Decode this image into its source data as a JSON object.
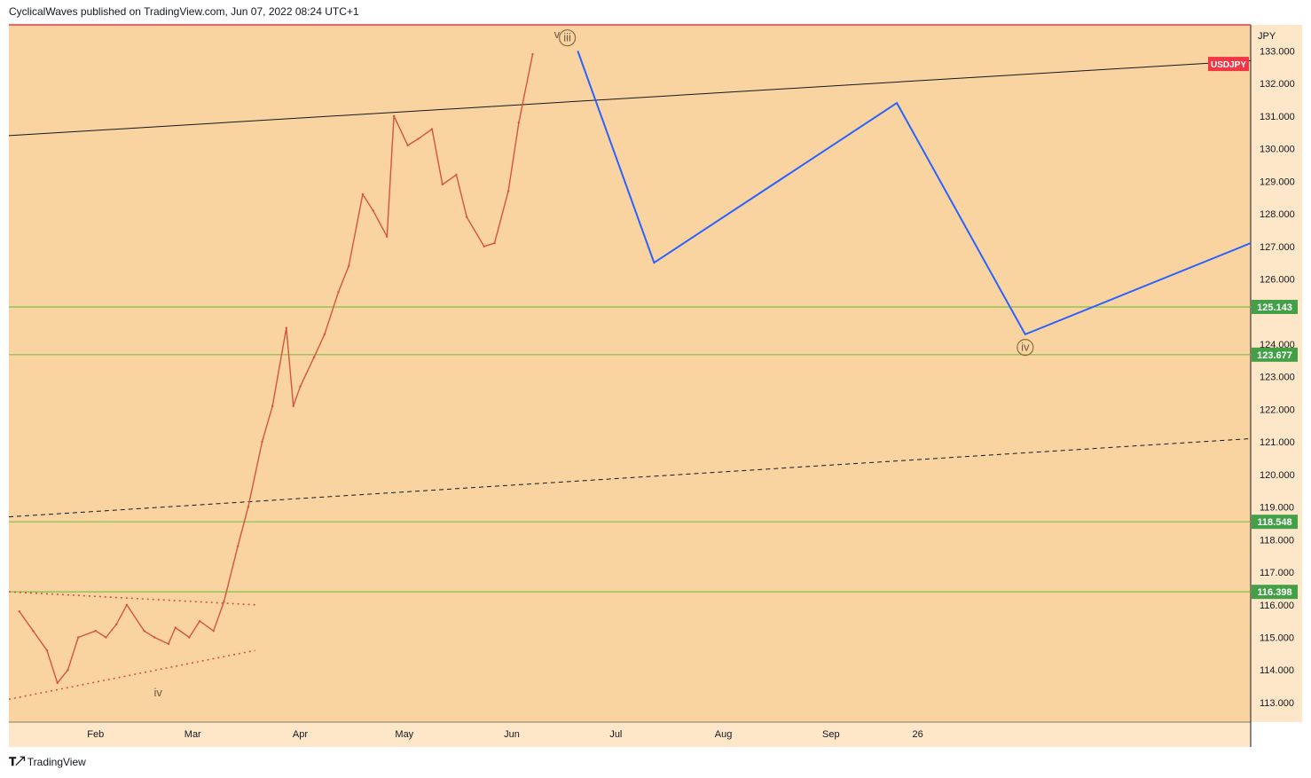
{
  "header": {
    "published_text": "CyclicalWaves published on TradingView.com, Jun 07, 2022 08:24 UTC+1"
  },
  "footer": {
    "brand": "TradingView",
    "logo_icon": "tradingview-logo-icon"
  },
  "colors": {
    "plot_bg": "#fad4a0",
    "price_line": "#d4553a",
    "projection": "#2962ff",
    "support": "#7cbf4a",
    "resistance": "#f23645",
    "trendline": "#131722",
    "label_bg_green": "#43a047",
    "symbol_tag": "#f23645"
  },
  "chart_data": {
    "type": "line",
    "symbol": "USDJPY",
    "currency": "JPY",
    "ylim": [
      112.4,
      133.8
    ],
    "yticks": [
      "133.000",
      "132.000",
      "131.000",
      "130.000",
      "129.000",
      "128.000",
      "127.000",
      "126.000",
      "124.000",
      "123.000",
      "122.000",
      "121.000",
      "120.000",
      "119.000",
      "118.000",
      "117.000",
      "116.000",
      "115.000",
      "114.000",
      "113.000"
    ],
    "xticks": [
      "Feb",
      "Mar",
      "Apr",
      "May",
      "Jun",
      "Jul",
      "Aug",
      "Sep",
      "26"
    ],
    "grid": false,
    "price_series": {
      "name": "USDJPY",
      "x": [
        "2022-01-10",
        "2022-01-14",
        "2022-01-18",
        "2022-01-21",
        "2022-01-24",
        "2022-01-27",
        "2022-02-01",
        "2022-02-04",
        "2022-02-07",
        "2022-02-10",
        "2022-02-15",
        "2022-02-18",
        "2022-02-22",
        "2022-02-24",
        "2022-02-28",
        "2022-03-03",
        "2022-03-07",
        "2022-03-10",
        "2022-03-14",
        "2022-03-17",
        "2022-03-21",
        "2022-03-24",
        "2022-03-28",
        "2022-03-30",
        "2022-04-01",
        "2022-04-05",
        "2022-04-08",
        "2022-04-12",
        "2022-04-15",
        "2022-04-19",
        "2022-04-22",
        "2022-04-26",
        "2022-04-28",
        "2022-05-02",
        "2022-05-05",
        "2022-05-09",
        "2022-05-12",
        "2022-05-16",
        "2022-05-19",
        "2022-05-24",
        "2022-05-27",
        "2022-05-31",
        "2022-06-03",
        "2022-06-07"
      ],
      "y": [
        115.8,
        115.2,
        114.6,
        113.6,
        114.0,
        115.0,
        115.2,
        115.0,
        115.4,
        116.0,
        115.2,
        115.0,
        114.8,
        115.3,
        115.0,
        115.5,
        115.2,
        116.1,
        117.8,
        119.0,
        121.0,
        122.1,
        124.5,
        122.1,
        122.7,
        123.6,
        124.3,
        125.6,
        126.4,
        128.6,
        128.1,
        127.3,
        131.0,
        130.1,
        130.3,
        130.6,
        128.9,
        129.2,
        127.9,
        127.0,
        127.1,
        128.7,
        130.8,
        132.9
      ]
    },
    "projection_path": {
      "x": [
        "2022-06-20",
        "2022-07-12",
        "2022-09-20",
        "2022-10-27",
        "2022-12-31"
      ],
      "y": [
        133.0,
        126.5,
        131.4,
        124.3,
        127.1
      ]
    },
    "horizontal_levels": [
      {
        "value": 133.8,
        "label": "",
        "style": "resistance"
      },
      {
        "value": 125.143,
        "label": "125.143",
        "style": "support"
      },
      {
        "value": 123.677,
        "label": "123.677",
        "style": "support"
      },
      {
        "value": 118.548,
        "label": "118.548",
        "style": "support"
      },
      {
        "value": 116.398,
        "label": "116.398",
        "style": "support"
      }
    ],
    "trendlines": [
      {
        "from": [
          "2022-01-07",
          130.4
        ],
        "to": [
          "2022-12-31",
          132.7
        ],
        "style": "solid"
      },
      {
        "from": [
          "2022-01-07",
          118.7
        ],
        "to": [
          "2022-12-31",
          121.1
        ],
        "style": "dashed"
      },
      {
        "from": [
          "2022-01-07",
          116.4
        ],
        "to": [
          "2022-03-19",
          116.0
        ],
        "style": "dotted"
      },
      {
        "from": [
          "2022-01-07",
          113.1
        ],
        "to": [
          "2022-03-19",
          114.6
        ],
        "style": "dotted"
      }
    ],
    "wave_labels": [
      {
        "text": "v",
        "circled": false,
        "x": "2022-06-14",
        "y": 133.5
      },
      {
        "text": "iii",
        "circled": true,
        "x": "2022-06-17",
        "y": 133.4
      },
      {
        "text": "iv",
        "circled": true,
        "x": "2022-10-27",
        "y": 123.9
      },
      {
        "text": "iv",
        "circled": false,
        "x": "2022-02-19",
        "y": 113.3
      }
    ],
    "symbol_tag": {
      "text": "USDJPY",
      "value": 132.6
    }
  }
}
